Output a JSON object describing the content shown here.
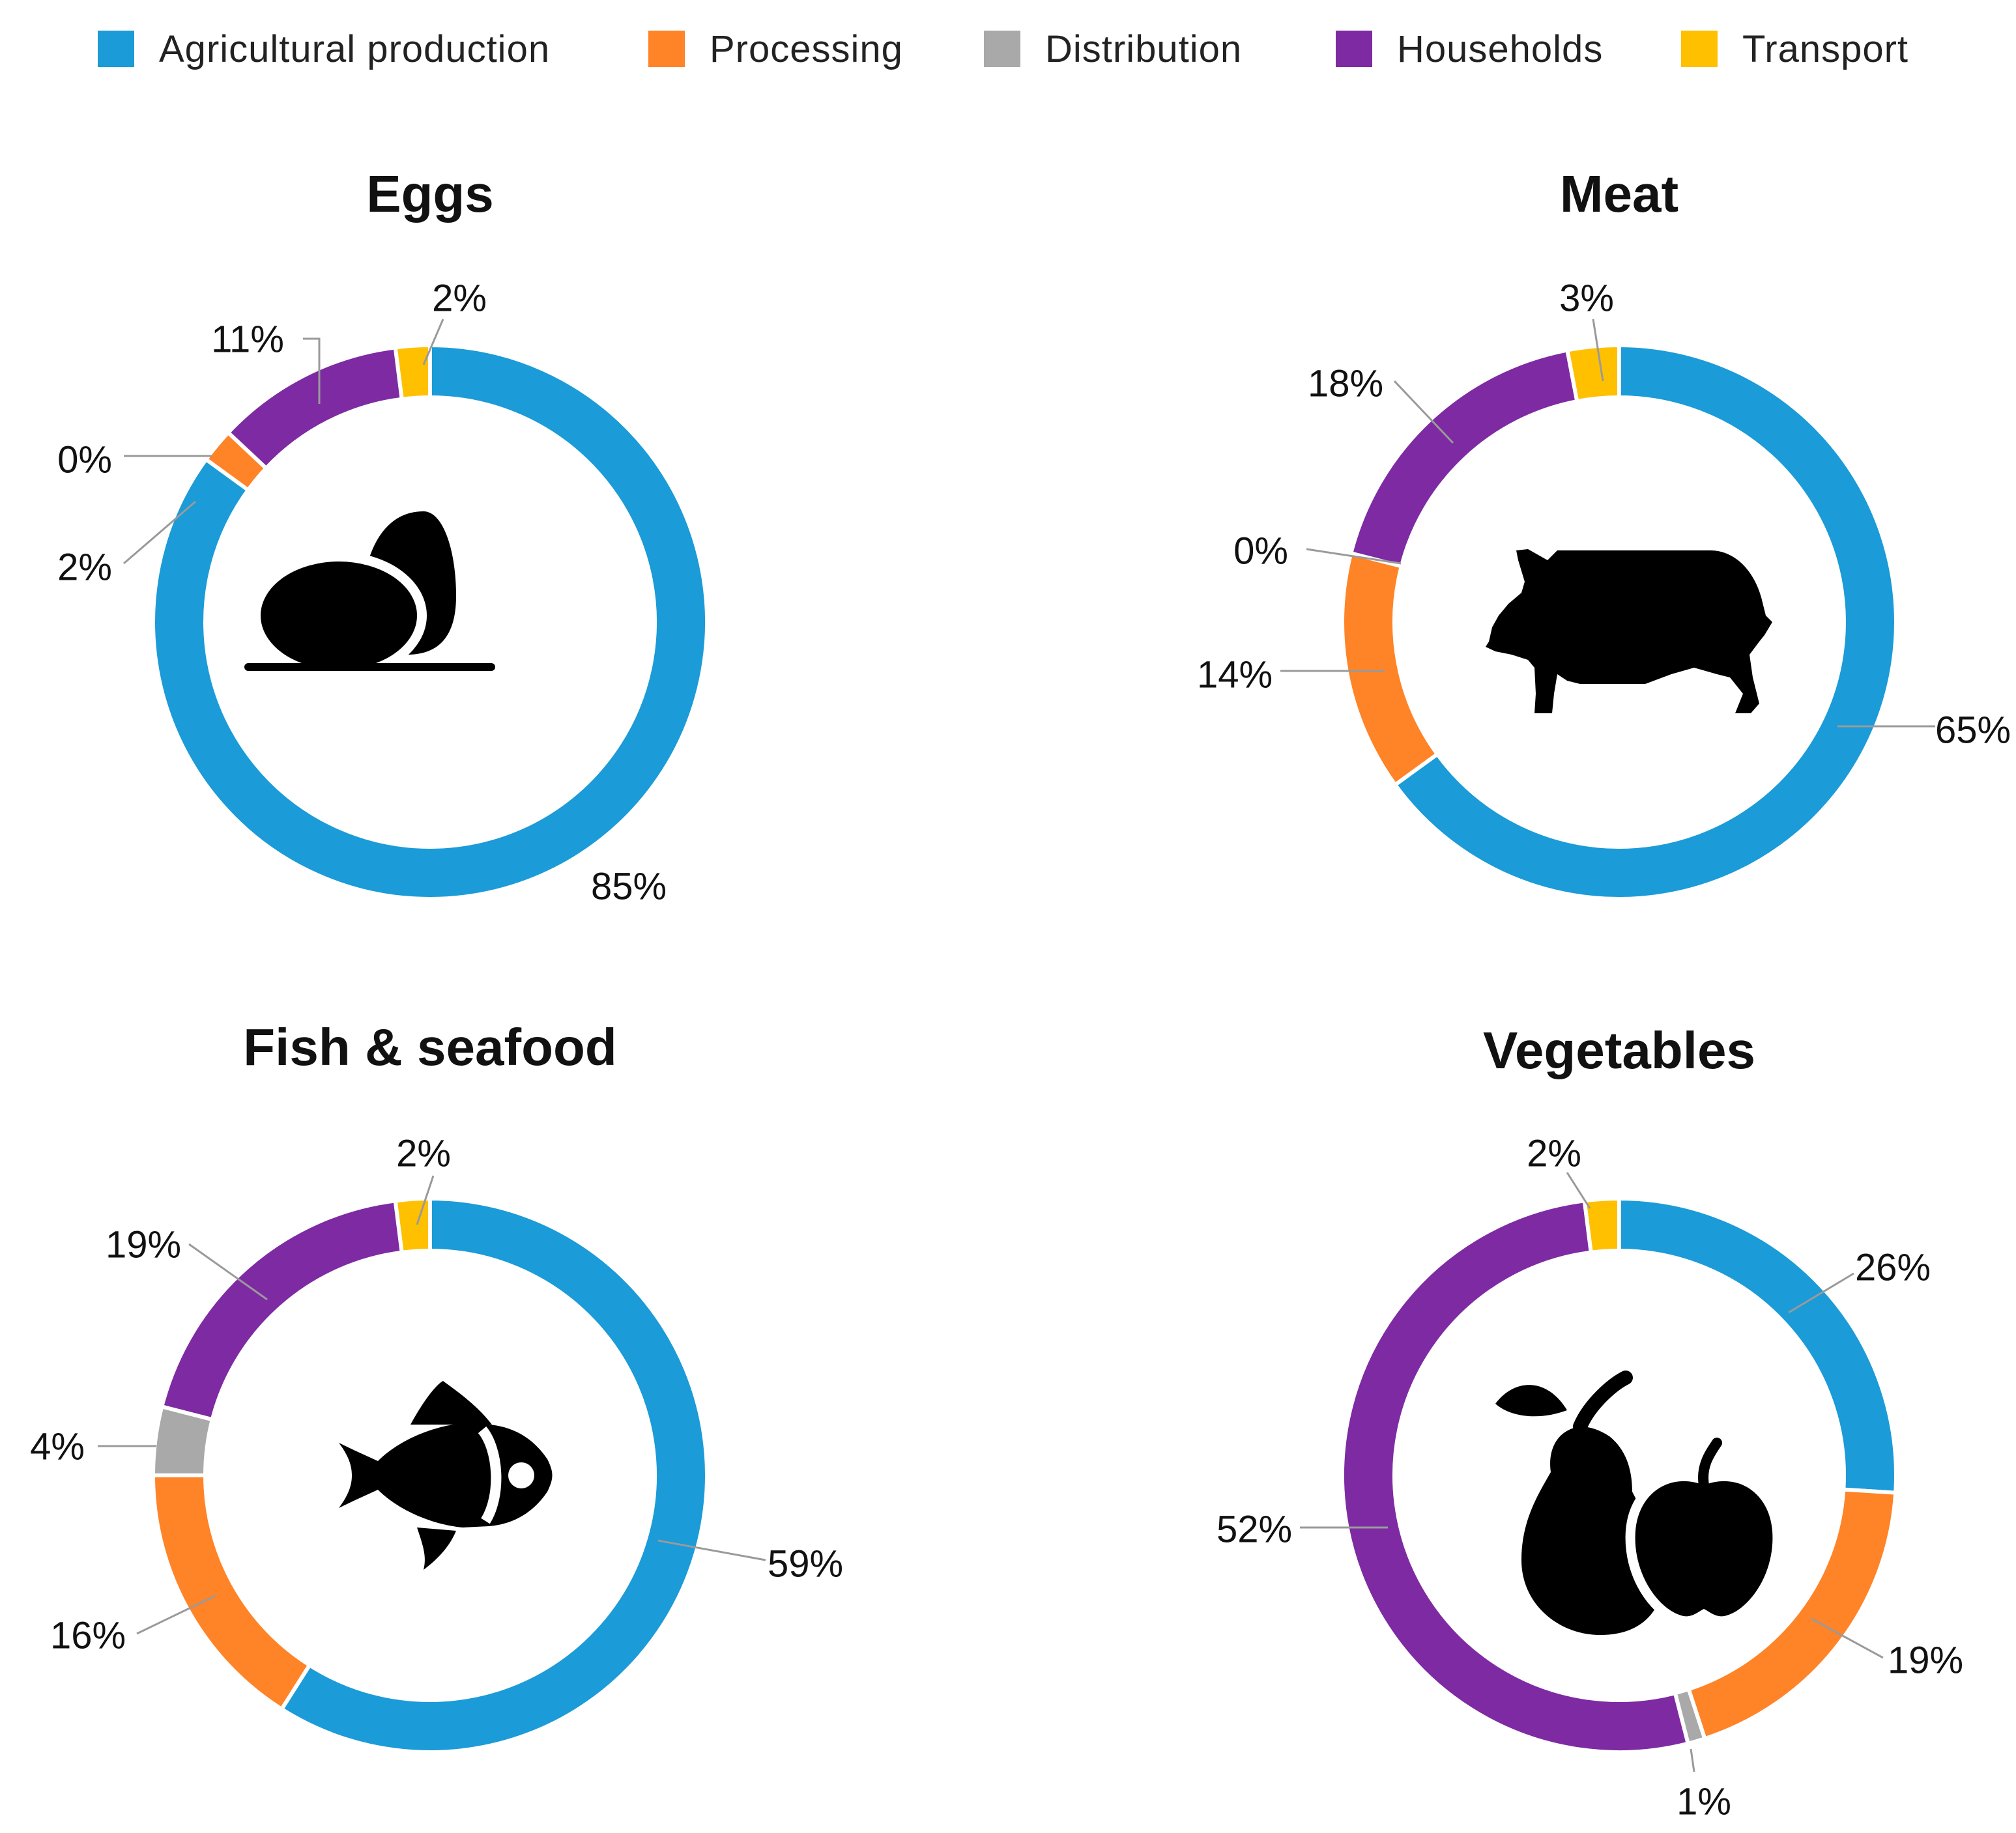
{
  "legend": [
    {
      "label": "Agricultural production",
      "color": "#1B9BD7"
    },
    {
      "label": "Processing",
      "color": "#FF8327"
    },
    {
      "label": "Distribution",
      "color": "#A9A9A9"
    },
    {
      "label": "Households",
      "color": "#7E2AA3"
    },
    {
      "label": "Transport",
      "color": "#FFC000"
    }
  ],
  "chart_data": [
    {
      "type": "pie",
      "title": "Eggs",
      "icon": "eggs-icon",
      "categories": [
        "Agricultural production",
        "Processing",
        "Distribution",
        "Households",
        "Transport"
      ],
      "values": [
        85,
        2,
        0,
        11,
        2
      ],
      "labels": [
        "85%",
        "2%",
        "0%",
        "11%",
        "2%"
      ]
    },
    {
      "type": "pie",
      "title": "Meat",
      "icon": "pig-icon",
      "categories": [
        "Agricultural production",
        "Processing",
        "Distribution",
        "Households",
        "Transport"
      ],
      "values": [
        65,
        14,
        0,
        18,
        3
      ],
      "labels": [
        "65%",
        "14%",
        "0%",
        "18%",
        "3%"
      ]
    },
    {
      "type": "pie",
      "title": "Fish & seafood",
      "icon": "fish-icon",
      "categories": [
        "Agricultural production",
        "Processing",
        "Distribution",
        "Households",
        "Transport"
      ],
      "values": [
        59,
        16,
        4,
        19,
        2
      ],
      "labels": [
        "59%",
        "16%",
        "4%",
        "19%",
        "2%"
      ]
    },
    {
      "type": "pie",
      "title": "Vegetables",
      "icon": "fruit-icon",
      "categories": [
        "Agricultural production",
        "Processing",
        "Distribution",
        "Households",
        "Transport"
      ],
      "values": [
        26,
        19,
        1,
        52,
        2
      ],
      "labels": [
        "26%",
        "19%",
        "1%",
        "52%",
        "2%"
      ]
    }
  ]
}
